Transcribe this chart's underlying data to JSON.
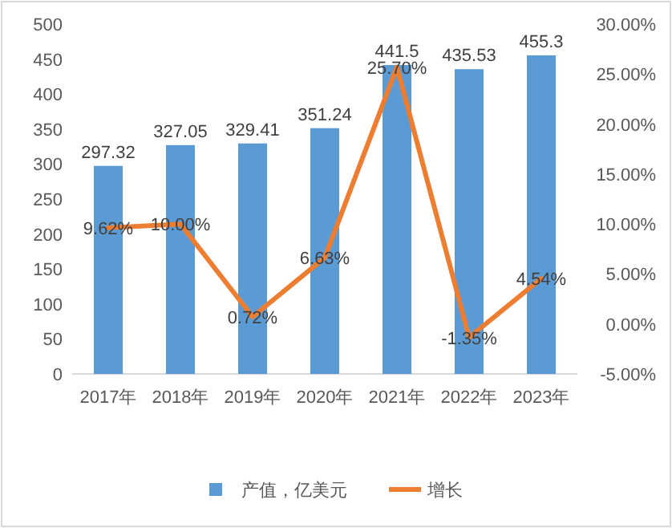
{
  "chart_data": {
    "type": "bar",
    "categories": [
      "2017年",
      "2018年",
      "2019年",
      "2020年",
      "2021年",
      "2022年",
      "2023年"
    ],
    "series": [
      {
        "name": "产值，亿美元",
        "color": "#5b9bd5",
        "values": [
          297.32,
          327.05,
          329.41,
          351.24,
          441.5,
          435.53,
          455.3
        ],
        "value_labels": [
          "297.32",
          "327.05",
          "329.41",
          "351.24",
          "441.5",
          "435.53",
          "455.3"
        ]
      },
      {
        "name": "增长",
        "type": "line",
        "axis": "y2",
        "color": "#ed7d31",
        "values": [
          9.62,
          10.0,
          0.72,
          6.63,
          25.7,
          -1.35,
          4.54
        ],
        "value_labels": [
          "9.62%",
          "10.00%",
          "0.72%",
          "6.63%",
          "25.70%",
          "-1.35%",
          "4.54%"
        ]
      }
    ],
    "ylim": [
      0,
      500
    ],
    "yticks": [
      0,
      50,
      100,
      150,
      200,
      250,
      300,
      350,
      400,
      450,
      500
    ],
    "y2lim": [
      -5,
      30
    ],
    "y2ticks": [
      {
        "value": -5,
        "label": "-5.00%"
      },
      {
        "value": 0,
        "label": "0.00%"
      },
      {
        "value": 5,
        "label": "5.00%"
      },
      {
        "value": 10,
        "label": "10.00%"
      },
      {
        "value": 15,
        "label": "15.00%"
      },
      {
        "value": 20,
        "label": "20.00%"
      },
      {
        "value": 25,
        "label": "25.00%"
      },
      {
        "value": 30,
        "label": "30.00%"
      }
    ],
    "grid": false,
    "legend": "bottom",
    "line_style": "solid"
  }
}
